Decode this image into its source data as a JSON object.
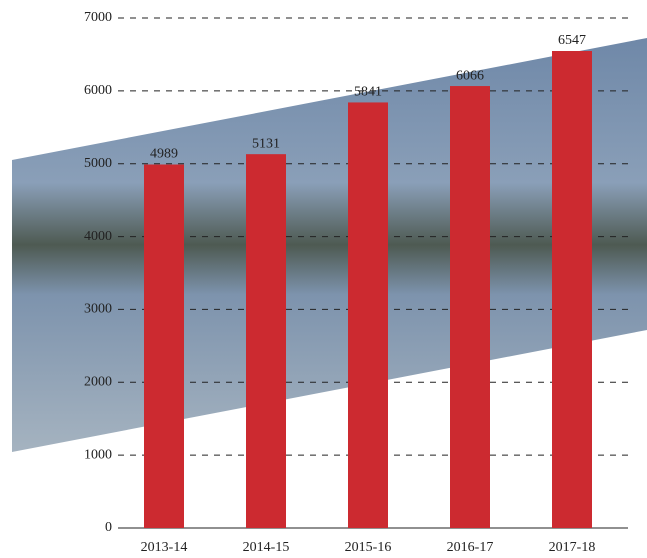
{
  "chart_data": {
    "type": "bar",
    "categories": [
      "2013-14",
      "2014-15",
      "2015-16",
      "2016-17",
      "2017-18"
    ],
    "values": [
      4989,
      5131,
      5841,
      6066,
      6547
    ],
    "color": "#cc2a30",
    "ylim": [
      0,
      7000
    ],
    "yticks": [
      0,
      1000,
      2000,
      3000,
      4000,
      5000,
      6000,
      7000
    ],
    "grid": true
  }
}
